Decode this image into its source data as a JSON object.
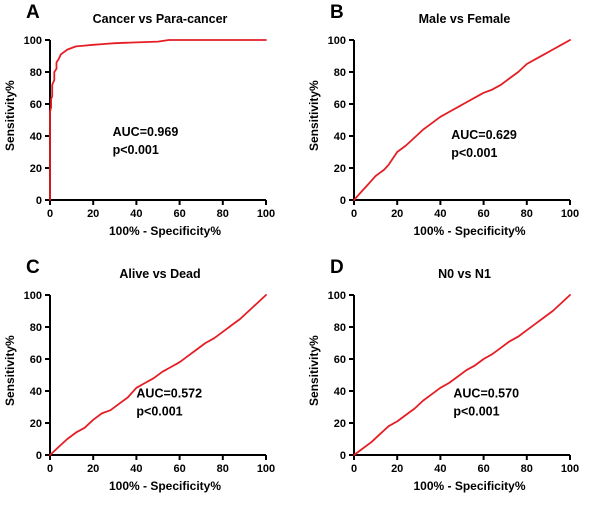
{
  "figure": {
    "background": "#ffffff",
    "curve_color": "#e41e25"
  },
  "chart_data": [
    {
      "type": "line",
      "panel": "A",
      "title": "Cancer vs Para-cancer",
      "xlabel": "100% - Specificity%",
      "ylabel": "Sensitivity%",
      "xlim": [
        0,
        100
      ],
      "ylim": [
        0,
        100
      ],
      "xticks": [
        0,
        20,
        40,
        60,
        80,
        100
      ],
      "yticks": [
        0,
        20,
        40,
        60,
        80,
        100
      ],
      "grid": false,
      "legend": "none",
      "auc": 0.969,
      "p_value": "p<0.001",
      "annotation": {
        "lines": [
          "AUC=0.969",
          "p<0.001"
        ],
        "x": 29,
        "y": 40
      },
      "series": [
        {
          "name": "ROC curve",
          "color": "#e41e25",
          "x": [
            0,
            0,
            0.5,
            0.5,
            1,
            1,
            2,
            2,
            3,
            3,
            4,
            5,
            6,
            8,
            10,
            12,
            16,
            20,
            25,
            30,
            40,
            50,
            55,
            100
          ],
          "y": [
            0,
            55,
            58,
            63,
            65,
            72,
            75,
            80,
            82,
            86,
            88,
            91,
            92,
            94,
            95,
            96,
            96.5,
            97,
            97.5,
            98,
            98.5,
            99,
            100,
            100
          ]
        }
      ]
    },
    {
      "type": "line",
      "panel": "B",
      "title": "Male vs Female",
      "xlabel": "100% - Specificity%",
      "ylabel": "Sensitivity%",
      "xlim": [
        0,
        100
      ],
      "ylim": [
        0,
        100
      ],
      "xticks": [
        0,
        20,
        40,
        60,
        80,
        100
      ],
      "yticks": [
        0,
        20,
        40,
        60,
        80,
        100
      ],
      "grid": false,
      "legend": "none",
      "auc": 0.629,
      "p_value": "p<0.001",
      "annotation": {
        "lines": [
          "AUC=0.629",
          "p<0.001"
        ],
        "x": 45,
        "y": 38
      },
      "series": [
        {
          "name": "ROC curve",
          "color": "#e41e25",
          "x": [
            0,
            2,
            4,
            6,
            8,
            10,
            12,
            14,
            16,
            18,
            20,
            24,
            28,
            32,
            36,
            40,
            44,
            48,
            52,
            56,
            60,
            64,
            68,
            72,
            76,
            80,
            84,
            88,
            92,
            96,
            100
          ],
          "y": [
            0,
            3,
            6,
            9,
            12,
            15,
            17,
            19,
            22,
            26,
            30,
            34,
            39,
            44,
            48,
            52,
            55,
            58,
            61,
            64,
            67,
            69,
            72,
            76,
            80,
            85,
            88,
            91,
            94,
            97,
            100
          ]
        }
      ]
    },
    {
      "type": "line",
      "panel": "C",
      "title": "Alive vs Dead",
      "xlabel": "100% - Specificity%",
      "ylabel": "Sensitivity%",
      "xlim": [
        0,
        100
      ],
      "ylim": [
        0,
        100
      ],
      "xticks": [
        0,
        20,
        40,
        60,
        80,
        100
      ],
      "yticks": [
        0,
        20,
        40,
        60,
        80,
        100
      ],
      "grid": false,
      "legend": "none",
      "auc": 0.572,
      "p_value": "p<0.001",
      "annotation": {
        "lines": [
          "AUC=0.572",
          "p<0.001"
        ],
        "x": 40,
        "y": 36
      },
      "series": [
        {
          "name": "ROC curve",
          "color": "#e41e25",
          "x": [
            0,
            4,
            8,
            12,
            16,
            20,
            24,
            28,
            32,
            36,
            40,
            44,
            48,
            52,
            56,
            60,
            64,
            68,
            72,
            76,
            80,
            84,
            88,
            92,
            96,
            100
          ],
          "y": [
            0,
            5,
            10,
            14,
            17,
            22,
            26,
            28,
            32,
            36,
            42,
            45,
            48,
            52,
            55,
            58,
            62,
            66,
            70,
            73,
            77,
            81,
            85,
            90,
            95,
            100
          ]
        }
      ]
    },
    {
      "type": "line",
      "panel": "D",
      "title": "N0 vs N1",
      "xlabel": "100% - Specificity%",
      "ylabel": "Sensitivity%",
      "xlim": [
        0,
        100
      ],
      "ylim": [
        0,
        100
      ],
      "xticks": [
        0,
        20,
        40,
        60,
        80,
        100
      ],
      "yticks": [
        0,
        20,
        40,
        60,
        80,
        100
      ],
      "grid": false,
      "legend": "none",
      "auc": 0.57,
      "p_value": "p<0.001",
      "annotation": {
        "lines": [
          "AUC=0.570",
          "p<0.001"
        ],
        "x": 46,
        "y": 36
      },
      "series": [
        {
          "name": "ROC curve",
          "color": "#e41e25",
          "x": [
            0,
            4,
            8,
            12,
            16,
            20,
            24,
            28,
            32,
            36,
            40,
            44,
            48,
            52,
            56,
            60,
            64,
            68,
            72,
            76,
            80,
            84,
            88,
            92,
            96,
            100
          ],
          "y": [
            0,
            4,
            8,
            13,
            18,
            21,
            25,
            29,
            34,
            38,
            42,
            45,
            49,
            53,
            56,
            60,
            63,
            67,
            71,
            74,
            78,
            82,
            86,
            90,
            95,
            100
          ]
        }
      ]
    }
  ]
}
